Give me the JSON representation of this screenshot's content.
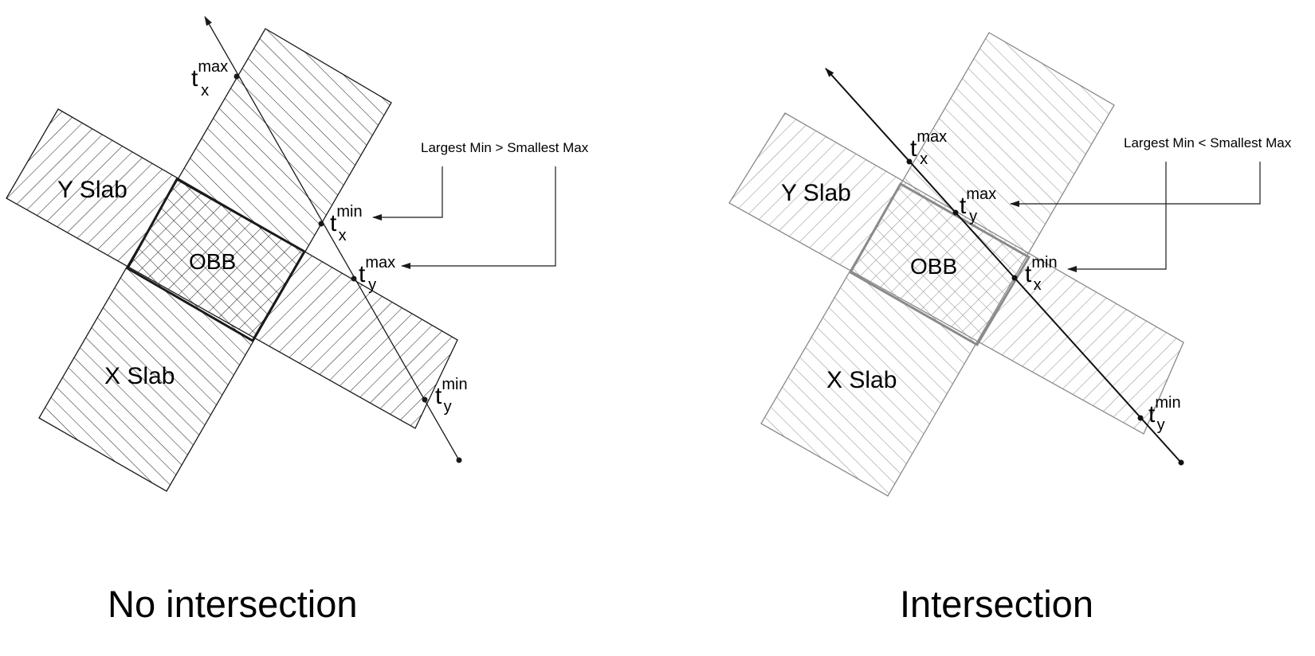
{
  "panels": [
    {
      "id": "no-intersection",
      "caption": "No intersection",
      "callout": "Largest Min > Smallest Max",
      "y_slab_label": "Y Slab",
      "x_slab_label": "X Slab",
      "obb_label": "OBB",
      "param_labels": {
        "tx_max": {
          "base": "t",
          "sub": "x",
          "sup": "max"
        },
        "tx_min": {
          "base": "t",
          "sub": "x",
          "sup": "min"
        },
        "ty_max": {
          "base": "t",
          "sub": "y",
          "sup": "max"
        },
        "ty_min": {
          "base": "t",
          "sub": "y",
          "sup": "min"
        }
      }
    },
    {
      "id": "intersection",
      "caption": "Intersection",
      "callout": "Largest Min < Smallest Max",
      "y_slab_label": "Y Slab",
      "x_slab_label": "X Slab",
      "obb_label": "OBB",
      "param_labels": {
        "tx_max": {
          "base": "t",
          "sub": "x",
          "sup": "max"
        },
        "ty_max": {
          "base": "t",
          "sub": "y",
          "sup": "max"
        },
        "tx_min": {
          "base": "t",
          "sub": "x",
          "sup": "min"
        },
        "ty_min": {
          "base": "t",
          "sub": "y",
          "sup": "min"
        }
      }
    }
  ],
  "colors": {
    "left_ink": "#1a1a1a",
    "right_ink": "#8a8a8a",
    "ray_right": "#111111",
    "background": "#ffffff"
  }
}
